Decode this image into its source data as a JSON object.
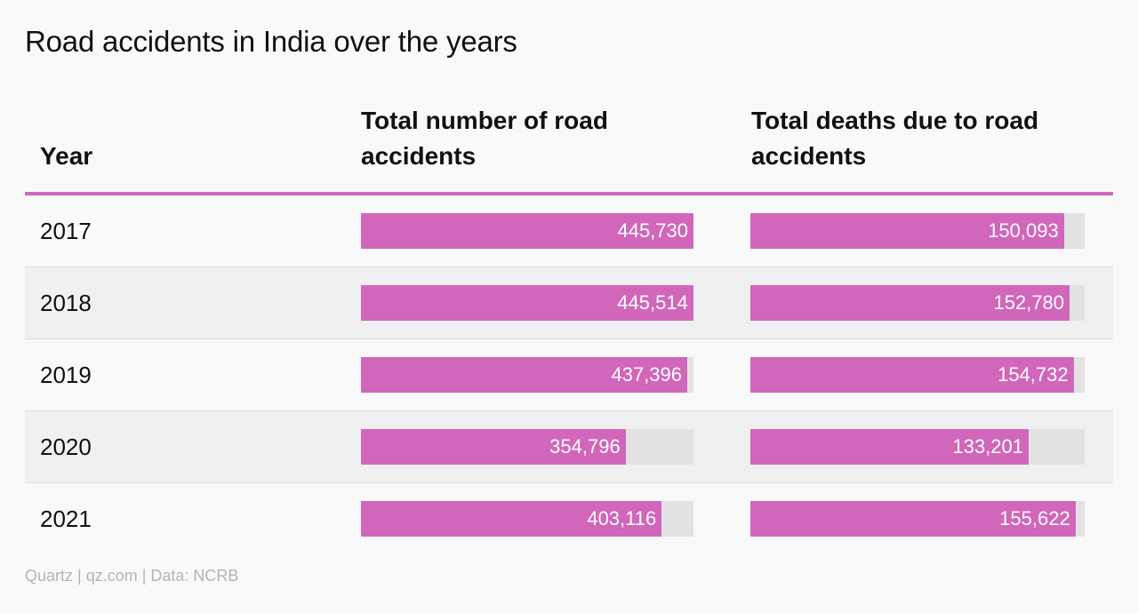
{
  "title": "Road accidents in India over the years",
  "columns": {
    "year": "Year",
    "accidents": "Total number of road accidents",
    "deaths": "Total deaths due to road accidents"
  },
  "colors": {
    "bar": "#d166bb",
    "track": "#e2e2e2",
    "header_rule": "#d166bb"
  },
  "chart_data": {
    "type": "table",
    "title": "Road accidents in India over the years",
    "columns": [
      "Year",
      "Total number of road accidents",
      "Total deaths due to road accidents"
    ],
    "rows": [
      {
        "year": "2017",
        "accidents": 445730,
        "accidents_label": "445,730",
        "deaths": 150093,
        "deaths_label": "150,093"
      },
      {
        "year": "2018",
        "accidents": 445514,
        "accidents_label": "445,514",
        "deaths": 152780,
        "deaths_label": "152,780"
      },
      {
        "year": "2019",
        "accidents": 437396,
        "accidents_label": "437,396",
        "deaths": 154732,
        "deaths_label": "154,732"
      },
      {
        "year": "2020",
        "accidents": 354796,
        "accidents_label": "354,796",
        "deaths": 133201,
        "deaths_label": "133,201"
      },
      {
        "year": "2021",
        "accidents": 403116,
        "accidents_label": "403,116",
        "deaths": 155622,
        "deaths_label": "155,622"
      }
    ],
    "scale_max": {
      "accidents": 445730,
      "deaths": 160000
    }
  },
  "footer": "Quartz | qz.com | Data: NCRB"
}
